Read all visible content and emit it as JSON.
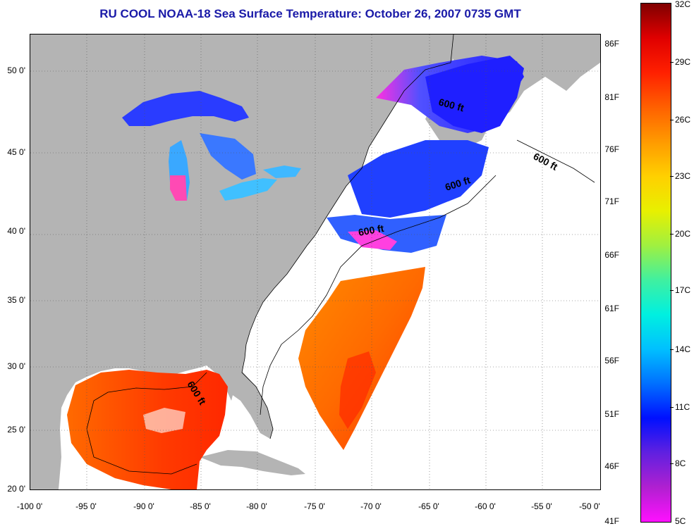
{
  "title": "RU COOL  NOAA-18  Sea Surface Temperature:  October 26, 2007 0735 GMT",
  "map": {
    "lat_ticks": [
      "20 0'",
      "25 0'",
      "30 0'",
      "35 0'",
      "40 0'",
      "45 0'",
      "50 0'"
    ],
    "lon_ticks": [
      "-100 0'",
      "-95 0'",
      "-90 0'",
      "-85 0'",
      "-80 0'",
      "-75 0'",
      "-70 0'",
      "-65 0'",
      "-60 0'",
      "-55 0'",
      "-50 0'"
    ],
    "contour_labels": [
      "600 ft",
      "600 ft",
      "600 ft",
      "600 ft",
      "600 ft"
    ],
    "colors": {
      "land": "#b4b4b4",
      "ocean_no_data": "#ffffff",
      "title": "#1a1aa8"
    }
  },
  "legend": {
    "fahrenheit": [
      "86F",
      "81F",
      "76F",
      "71F",
      "66F",
      "61F",
      "56F",
      "51F",
      "46F",
      "41F"
    ],
    "celsius": [
      "32C",
      "29C",
      "26C",
      "23C",
      "20C",
      "17C",
      "14C",
      "11C",
      "8C",
      "5C"
    ],
    "gradient_colors": [
      "#800000",
      "#e00000",
      "#ff2000",
      "#ff6000",
      "#ff9a00",
      "#ffd000",
      "#e8f000",
      "#a0f040",
      "#40f0a0",
      "#00f0e0",
      "#00c0ff",
      "#0070ff",
      "#0010ff",
      "#6020e0",
      "#b020d0",
      "#ff10ff"
    ]
  }
}
